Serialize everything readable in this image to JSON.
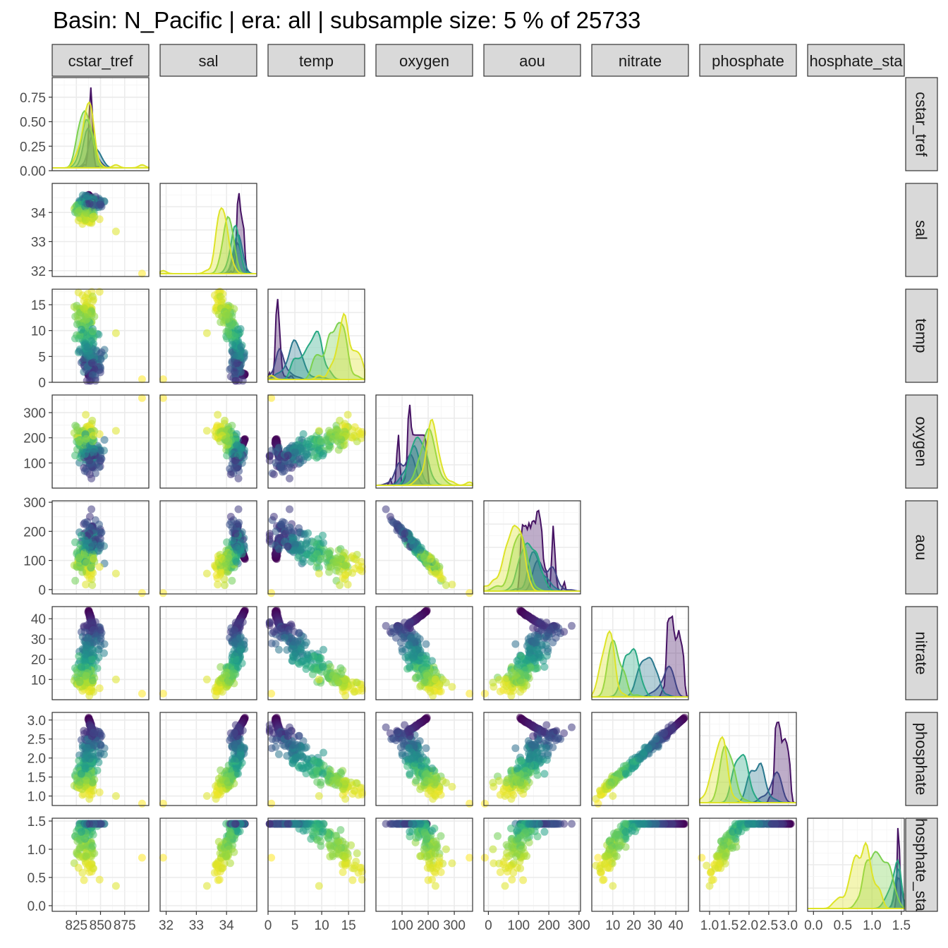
{
  "title": "Basin: N_Pacific | era: all | subsample size: 5 % of 25733",
  "colors": {
    "panel_border": "#333333",
    "strip_fill": "#d9d9d9",
    "grid_major": "#ebebeb",
    "grid_minor": "#f4f4f4",
    "palette": "viridis"
  },
  "chart_data": {
    "type": "scatter",
    "variables": [
      "cstar_tref",
      "sal",
      "temp",
      "oxygen",
      "aou",
      "nitrate",
      "phosphate",
      "phosphate_star"
    ],
    "column_strip_labels": [
      "cstar_tref",
      "sal",
      "temp",
      "oxygen",
      "aou",
      "nitrate",
      "phosphate",
      "hosphate_sta"
    ],
    "row_strip_labels": [
      "cstar_tref",
      "sal",
      "temp",
      "oxygen",
      "aou",
      "nitrate",
      "phosphate",
      "hosphate_sta"
    ],
    "layout": "lower-triangle scatter matrix with density plots on the diagonal, colour by depth layer (viridis)",
    "grid": true,
    "axes": {
      "cstar_tref": {
        "range": [
          800,
          900
        ],
        "ticks": [
          "825",
          "850",
          "875"
        ],
        "density_range": [
          0,
          0.95
        ],
        "density_ticks": [
          "0.00",
          "0.25",
          "0.50",
          "0.75"
        ]
      },
      "sal": {
        "range": [
          31.8,
          35.0
        ],
        "ticks": [
          "32",
          "33",
          "34"
        ]
      },
      "temp": {
        "range": [
          0,
          18
        ],
        "ticks": [
          "0",
          "5",
          "10",
          "15"
        ]
      },
      "oxygen": {
        "range": [
          0,
          370
        ],
        "ticks": [
          "100",
          "200",
          "300"
        ]
      },
      "aou": {
        "range": [
          -15,
          305
        ],
        "ticks": [
          "0",
          "100",
          "200",
          "300"
        ]
      },
      "nitrate": {
        "range": [
          0,
          46
        ],
        "ticks": [
          "10",
          "20",
          "30",
          "40"
        ]
      },
      "phosphate": {
        "range": [
          0.75,
          3.2
        ],
        "ticks": [
          "1.0",
          "1.5",
          "2.0",
          "2.5",
          "3.0"
        ]
      },
      "phosphate_star": {
        "range": [
          -0.1,
          1.55
        ],
        "ticks": [
          "0.0",
          "0.5",
          "1.0",
          "1.5"
        ]
      }
    }
  }
}
